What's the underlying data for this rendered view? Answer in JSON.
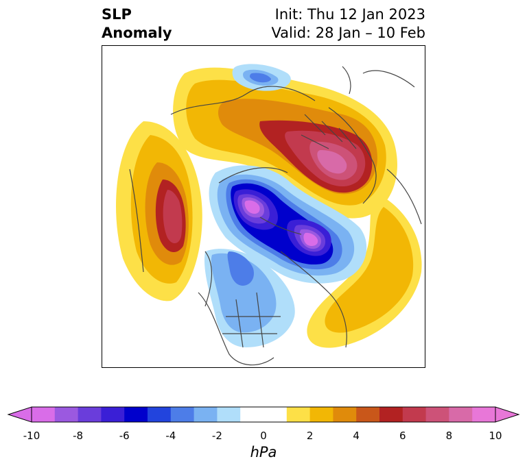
{
  "header": {
    "title_left": "SLP\nAnomaly",
    "title_right": "Init: Thu 12 Jan 2023\nValid: 28 Jan – 10 Feb"
  },
  "colorbar": {
    "units": "hPa",
    "tick_labels": [
      "-10",
      "-8",
      "-6",
      "-4",
      "-2",
      "0",
      "2",
      "4",
      "6",
      "8",
      "10"
    ],
    "colors": [
      "#d96de8",
      "#9b59e0",
      "#6a3ddb",
      "#3a1fd6",
      "#0000cc",
      "#2244dd",
      "#4d7de8",
      "#7ab2f2",
      "#b0defa",
      "#ffffff",
      "#ffffff",
      "#fde047",
      "#f2b705",
      "#e08b0b",
      "#c9571a",
      "#b22222",
      "#c23a4e",
      "#cd5278",
      "#d86aa8",
      "#e877d8"
    ]
  },
  "map": {
    "colors": {
      "pink_low": "#d96de8",
      "purple": "#9b59e0",
      "deep_blue": "#0000cc",
      "mid_blue": "#4d7de8",
      "light_blue": "#b0defa",
      "yellow": "#fde047",
      "gold": "#f2b705",
      "orange": "#e08b0b",
      "red": "#b22222",
      "crimson": "#c23a4e",
      "coast": "#444444"
    }
  }
}
